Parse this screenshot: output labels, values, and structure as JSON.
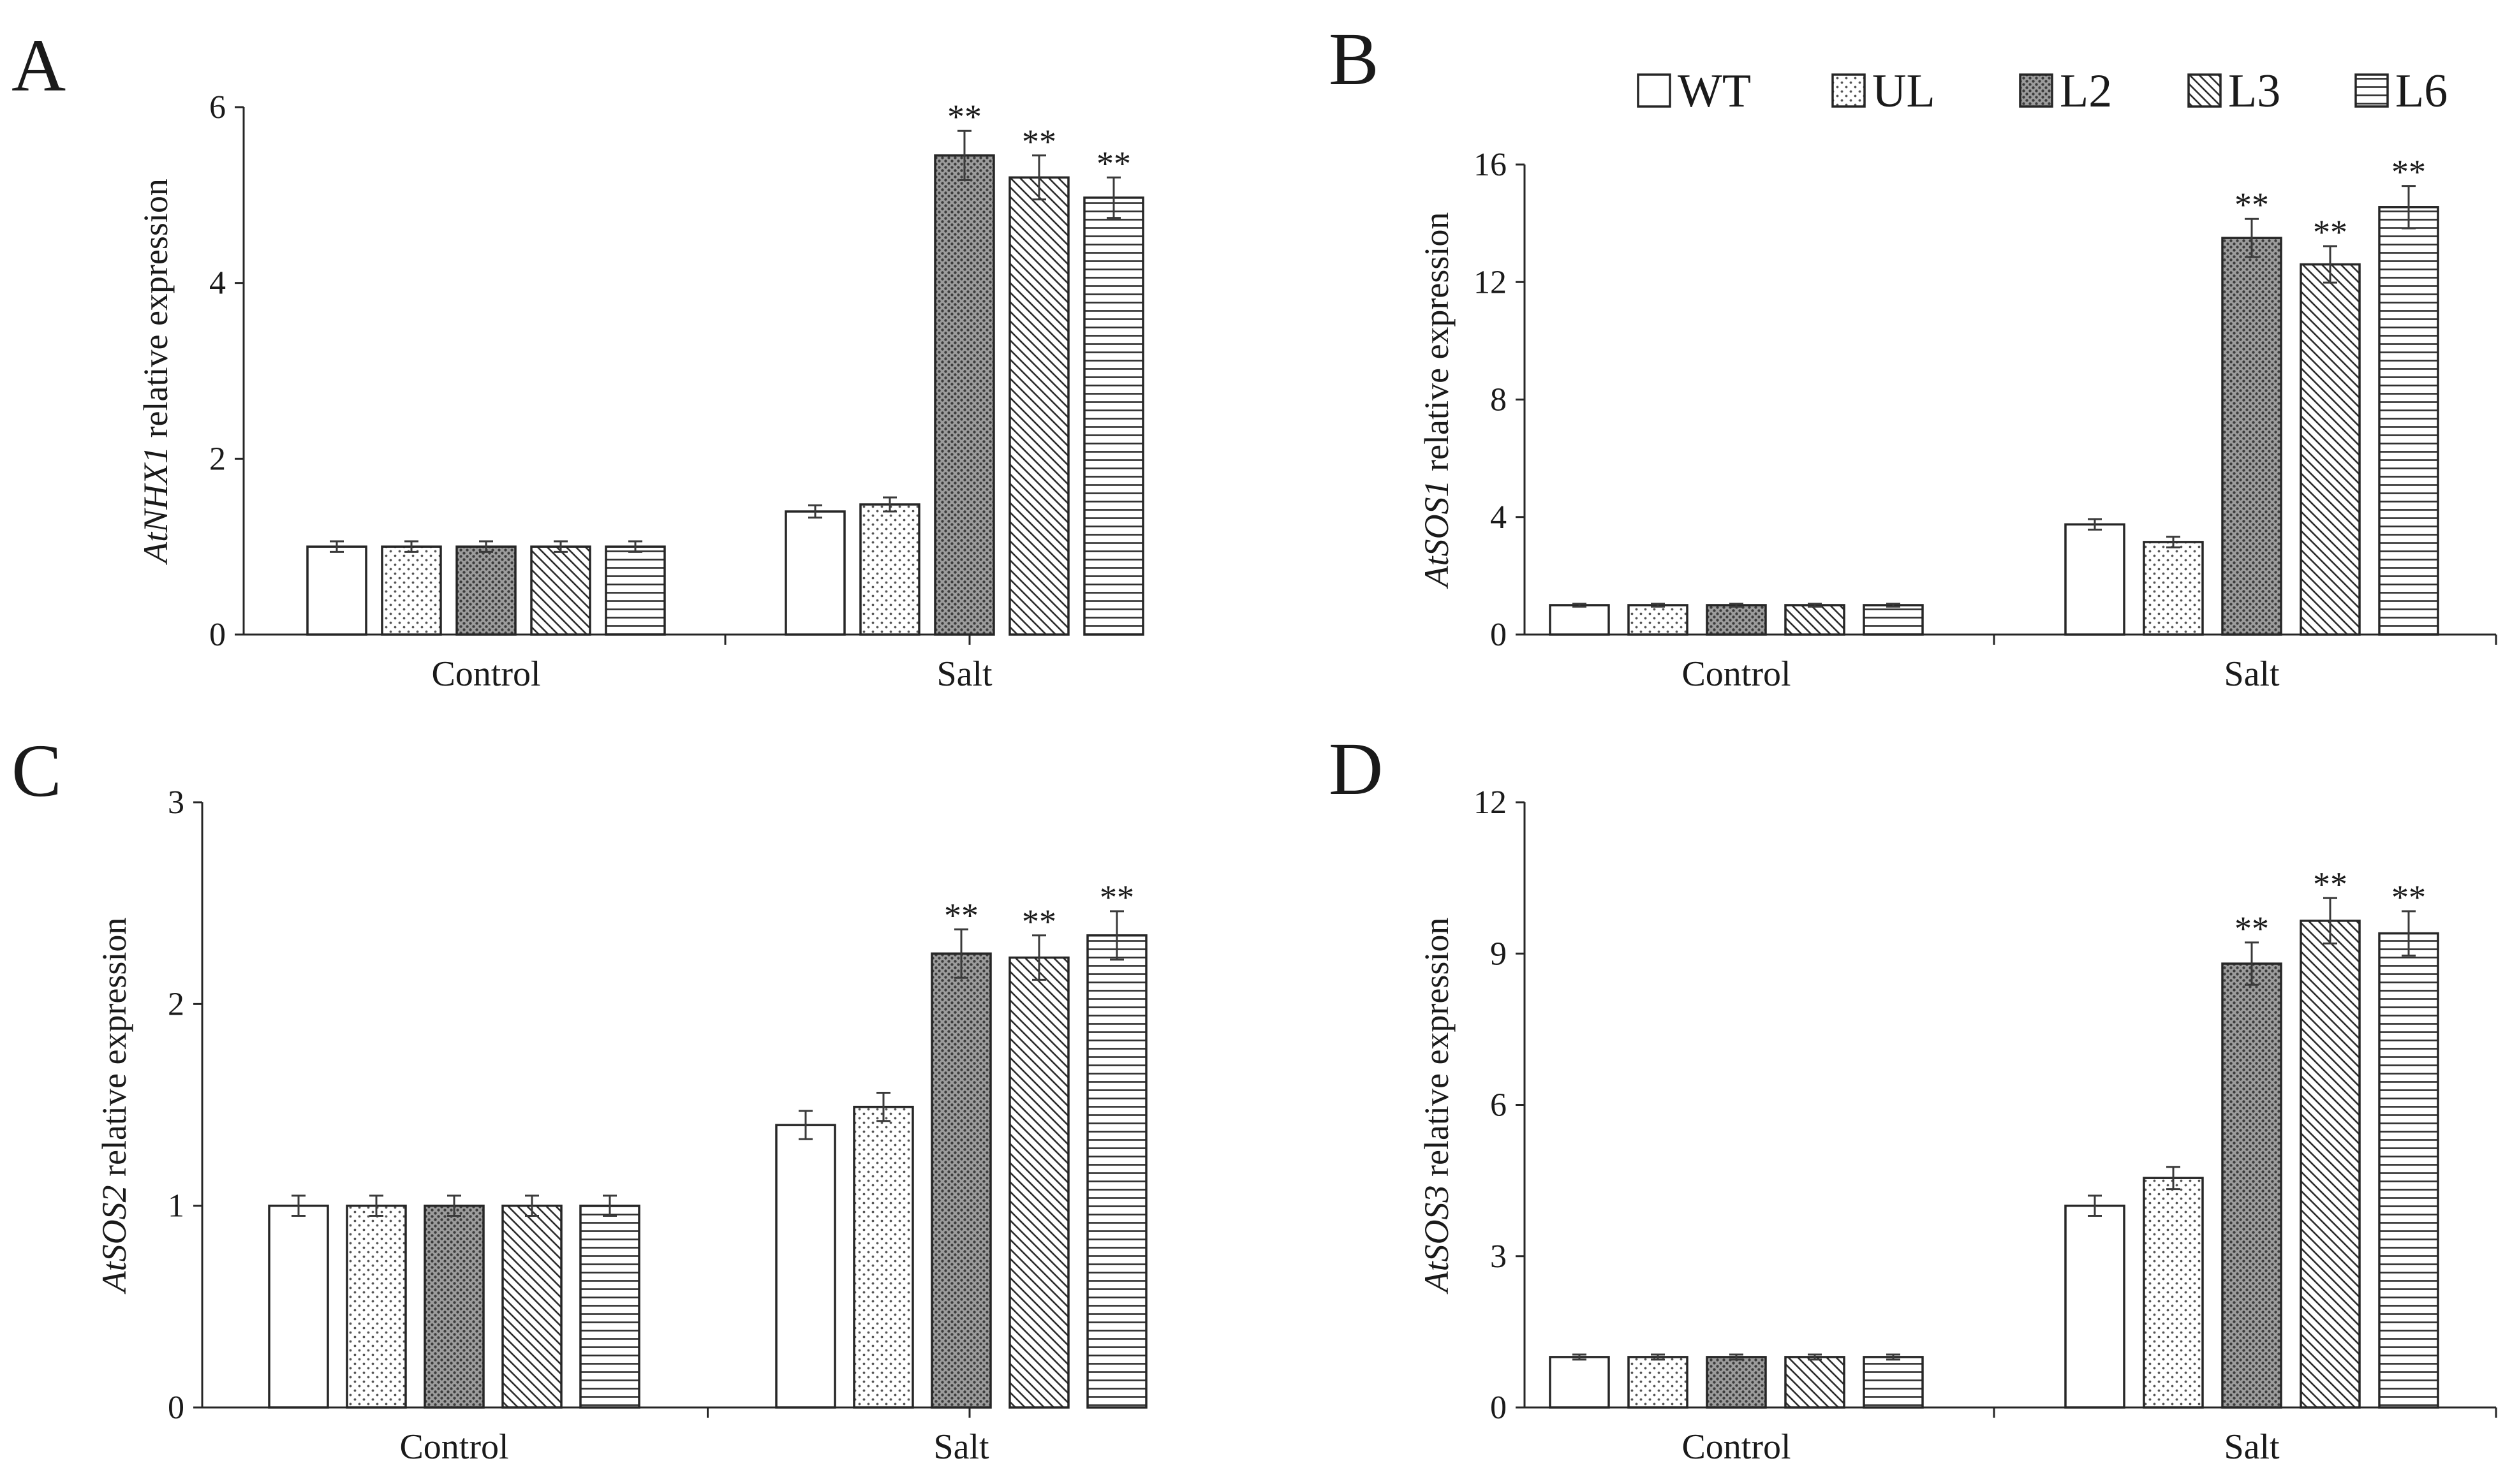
{
  "legend": {
    "entries": [
      {
        "label": "WT",
        "pattern": "white"
      },
      {
        "label": "UL",
        "pattern": "dots"
      },
      {
        "label": "L2",
        "pattern": "dense"
      },
      {
        "label": "L3",
        "pattern": "diag"
      },
      {
        "label": "L6",
        "pattern": "hlines"
      }
    ]
  },
  "chart_data": [
    {
      "panel": "A",
      "type": "bar",
      "ylabel_gene": "AtNHX1",
      "ylabel_rest": " relative expression",
      "ylim": [
        0,
        6
      ],
      "yticks": [
        0,
        2,
        4,
        6
      ],
      "categories": [
        "Control",
        "Salt"
      ],
      "significance_label": "**",
      "series": [
        {
          "name": "WT",
          "values": [
            1.0,
            1.4
          ],
          "errors": [
            0.06,
            0.07
          ],
          "significant": [
            false,
            false
          ]
        },
        {
          "name": "UL",
          "values": [
            1.0,
            1.48
          ],
          "errors": [
            0.06,
            0.08
          ],
          "significant": [
            false,
            false
          ]
        },
        {
          "name": "L2",
          "values": [
            1.0,
            5.45
          ],
          "errors": [
            0.06,
            0.28
          ],
          "significant": [
            false,
            true
          ]
        },
        {
          "name": "L3",
          "values": [
            1.0,
            5.2
          ],
          "errors": [
            0.06,
            0.25
          ],
          "significant": [
            false,
            true
          ]
        },
        {
          "name": "L6",
          "values": [
            1.0,
            4.97
          ],
          "errors": [
            0.06,
            0.23
          ],
          "significant": [
            false,
            true
          ]
        }
      ]
    },
    {
      "panel": "B",
      "type": "bar",
      "ylabel_gene": "AtSOS1",
      "ylabel_rest": " relative expression",
      "ylim": [
        0,
        16
      ],
      "yticks": [
        0,
        4,
        8,
        12,
        16
      ],
      "categories": [
        "Control",
        "Salt"
      ],
      "significance_label": "**",
      "series": [
        {
          "name": "WT",
          "values": [
            1.0,
            3.75
          ],
          "errors": [
            0.05,
            0.18
          ],
          "significant": [
            false,
            false
          ]
        },
        {
          "name": "UL",
          "values": [
            1.0,
            3.15
          ],
          "errors": [
            0.05,
            0.18
          ],
          "significant": [
            false,
            false
          ]
        },
        {
          "name": "L2",
          "values": [
            1.0,
            13.5
          ],
          "errors": [
            0.05,
            0.65
          ],
          "significant": [
            false,
            true
          ]
        },
        {
          "name": "L3",
          "values": [
            1.0,
            12.6
          ],
          "errors": [
            0.05,
            0.62
          ],
          "significant": [
            false,
            true
          ]
        },
        {
          "name": "L6",
          "values": [
            1.0,
            14.55
          ],
          "errors": [
            0.05,
            0.72
          ],
          "significant": [
            false,
            true
          ]
        }
      ]
    },
    {
      "panel": "C",
      "type": "bar",
      "ylabel_gene": "AtSOS2",
      "ylabel_rest": " relative expression",
      "ylim": [
        0,
        3
      ],
      "yticks": [
        0,
        1,
        2,
        3
      ],
      "categories": [
        "Control",
        "Salt"
      ],
      "significance_label": "**",
      "series": [
        {
          "name": "WT",
          "values": [
            1.0,
            1.4
          ],
          "errors": [
            0.05,
            0.07
          ],
          "significant": [
            false,
            false
          ]
        },
        {
          "name": "UL",
          "values": [
            1.0,
            1.49
          ],
          "errors": [
            0.05,
            0.07
          ],
          "significant": [
            false,
            false
          ]
        },
        {
          "name": "L2",
          "values": [
            1.0,
            2.25
          ],
          "errors": [
            0.05,
            0.12
          ],
          "significant": [
            false,
            true
          ]
        },
        {
          "name": "L3",
          "values": [
            1.0,
            2.23
          ],
          "errors": [
            0.05,
            0.11
          ],
          "significant": [
            false,
            true
          ]
        },
        {
          "name": "L6",
          "values": [
            1.0,
            2.34
          ],
          "errors": [
            0.05,
            0.12
          ],
          "significant": [
            false,
            true
          ]
        }
      ]
    },
    {
      "panel": "D",
      "type": "bar",
      "ylabel_gene": "AtSOS3",
      "ylabel_rest": " relative expression",
      "ylim": [
        0,
        12
      ],
      "yticks": [
        0,
        3,
        6,
        9,
        12
      ],
      "categories": [
        "Control",
        "Salt"
      ],
      "significance_label": "**",
      "series": [
        {
          "name": "WT",
          "values": [
            1.0,
            4.0
          ],
          "errors": [
            0.05,
            0.2
          ],
          "significant": [
            false,
            false
          ]
        },
        {
          "name": "UL",
          "values": [
            1.0,
            4.55
          ],
          "errors": [
            0.05,
            0.22
          ],
          "significant": [
            false,
            false
          ]
        },
        {
          "name": "L2",
          "values": [
            1.0,
            8.8
          ],
          "errors": [
            0.05,
            0.42
          ],
          "significant": [
            false,
            true
          ]
        },
        {
          "name": "L3",
          "values": [
            1.0,
            9.65
          ],
          "errors": [
            0.05,
            0.45
          ],
          "significant": [
            false,
            true
          ]
        },
        {
          "name": "L6",
          "values": [
            1.0,
            9.4
          ],
          "errors": [
            0.05,
            0.44
          ],
          "significant": [
            false,
            true
          ]
        }
      ]
    }
  ]
}
